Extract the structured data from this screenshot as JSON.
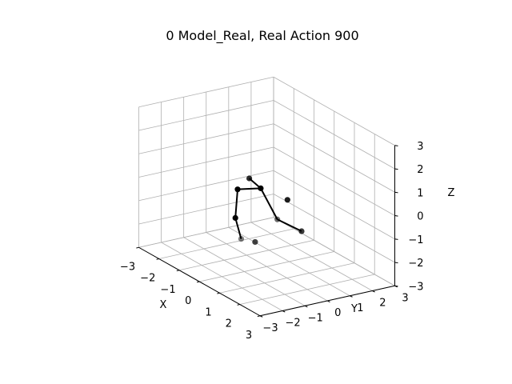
{
  "chart_data": {
    "type": "scatter",
    "projection": "3d",
    "title": "0 Model_Real, Real Action 900",
    "xlabel": "X",
    "ylabel": "Y",
    "zlabel": "Z",
    "xlim": [
      -3,
      3
    ],
    "ylim": [
      -3,
      3
    ],
    "zlim": [
      -3,
      3
    ],
    "xticks": [
      "−3",
      "−2",
      "−1",
      "0",
      "1",
      "2",
      "3"
    ],
    "yticks": [
      "−3",
      "−2",
      "−1",
      "0",
      "1",
      "2",
      "3"
    ],
    "zticks": [
      "−3",
      "−2",
      "−1",
      "0",
      "1",
      "2",
      "3"
    ],
    "grid": true,
    "view": {
      "elev": 10,
      "azim": -60
    },
    "marker_color": "#000000",
    "line_color": "#000000",
    "points": [
      {
        "x": -0.3,
        "y": 0.0,
        "z": 0.2
      },
      {
        "x": -1.0,
        "y": -0.4,
        "z": -0.1
      },
      {
        "x": -0.2,
        "y": -0.6,
        "z": 0.8
      },
      {
        "x": 1.3,
        "y": -0.7,
        "z": -0.2
      },
      {
        "x": 1.5,
        "y": 0.2,
        "z": -0.8
      },
      {
        "x": -1.0,
        "y": -0.5,
        "z": -1.3
      },
      {
        "x": 0.4,
        "y": -1.5,
        "z": -1.3
      },
      {
        "x": 0.8,
        "y": 0.2,
        "z": 0.2
      },
      {
        "x": 0.2,
        "y": -0.7,
        "z": -1.7
      }
    ],
    "bones": [
      [
        0,
        1
      ],
      [
        0,
        2
      ],
      [
        0,
        3
      ],
      [
        3,
        4
      ],
      [
        1,
        5
      ],
      [
        5,
        6
      ]
    ]
  }
}
